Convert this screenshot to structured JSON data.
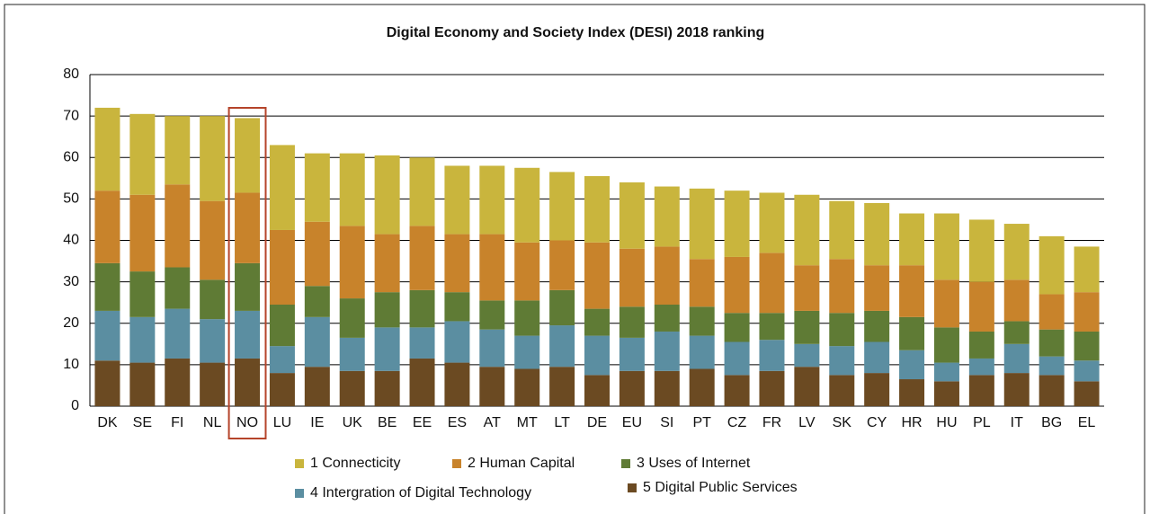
{
  "chart_data": {
    "type": "stacked_bar",
    "title": "Digital Economy and Society Index (DESI) 2018 ranking",
    "categories": [
      "DK",
      "SE",
      "FI",
      "NL",
      "NO",
      "LU",
      "IE",
      "UK",
      "BE",
      "EE",
      "ES",
      "AT",
      "MT",
      "LT",
      "DE",
      "EU",
      "SI",
      "PT",
      "CZ",
      "FR",
      "LV",
      "SK",
      "CY",
      "HR",
      "HU",
      "PL",
      "IT",
      "BG",
      "EL"
    ],
    "series": [
      {
        "name": "1 Connecticity",
        "color": "#c9b53d",
        "values": [
          20,
          19.5,
          16.5,
          20.5,
          18,
          20.5,
          16.5,
          17.5,
          19,
          16.5,
          16.5,
          16.5,
          18,
          16.5,
          16,
          16,
          14.5,
          17,
          16,
          14.5,
          17,
          14,
          15,
          12.5,
          16,
          15,
          13.5,
          14,
          11
        ]
      },
      {
        "name": "2 Human Capital",
        "color": "#c8832b",
        "values": [
          17.5,
          18.5,
          20,
          19,
          17,
          18,
          15.5,
          17.5,
          14,
          15.5,
          14,
          16,
          14,
          12,
          16,
          14,
          14,
          11.5,
          13.5,
          14.5,
          11,
          13,
          11,
          12.5,
          11.5,
          12,
          10,
          8.5,
          9.5
        ]
      },
      {
        "name": "3 Uses of Internet",
        "color": "#5f7b35",
        "values": [
          11.5,
          11,
          10,
          9.5,
          11.5,
          10,
          7.5,
          9.5,
          8.5,
          9,
          7,
          7,
          8.5,
          8.5,
          6.5,
          7.5,
          6.5,
          7,
          7,
          6.5,
          8,
          8,
          7.5,
          8,
          8.5,
          6.5,
          5.5,
          6.5,
          7
        ]
      },
      {
        "name": "4 Intergration of Digital Technology",
        "color": "#5b8ea1",
        "values": [
          12,
          11,
          12,
          10.5,
          11.5,
          6.5,
          12,
          8,
          10.5,
          7.5,
          10,
          9,
          8,
          10,
          9.5,
          8,
          9.5,
          8,
          8,
          7.5,
          5.5,
          7,
          7.5,
          7,
          4.5,
          4,
          7,
          4.5,
          5
        ]
      },
      {
        "name": "5 Digital Public Services",
        "color": "#6b4a22",
        "values": [
          11,
          10.5,
          11.5,
          10.5,
          11.5,
          8,
          9.5,
          8.5,
          8.5,
          11.5,
          10.5,
          9.5,
          9,
          9.5,
          7.5,
          8.5,
          8.5,
          9,
          7.5,
          8.5,
          9.5,
          7.5,
          8,
          6.5,
          6,
          7.5,
          8,
          7.5,
          6
        ]
      }
    ],
    "ylim": [
      0,
      80
    ],
    "yticks": [
      0,
      10,
      20,
      30,
      40,
      50,
      60,
      70,
      80
    ],
    "grid": true
  }
}
